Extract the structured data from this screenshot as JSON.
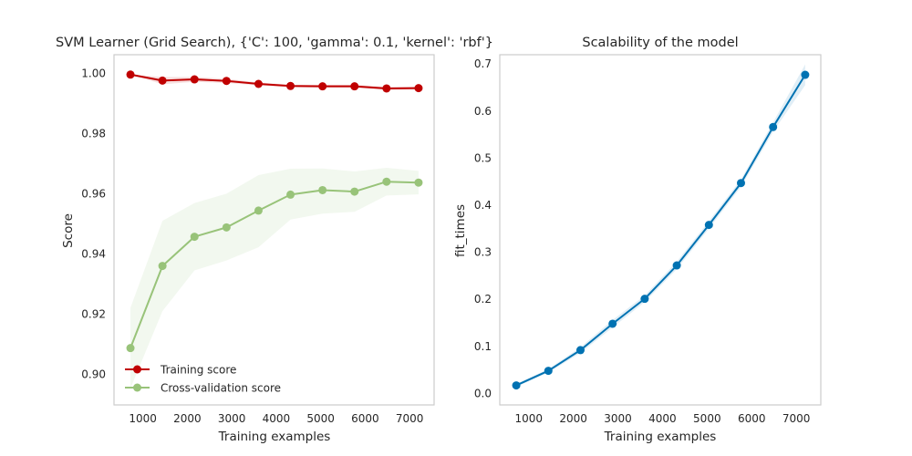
{
  "chart_data": [
    {
      "type": "line",
      "title": "SVM Learner (Grid Search), {'C': 100, 'gamma': 0.1, 'kernel': 'rbf'}",
      "xlabel": "Training examples",
      "ylabel": "Score",
      "xlim": [
        350,
        7550
      ],
      "ylim": [
        0.8898,
        1.0062
      ],
      "xticks": [
        1000,
        2000,
        3000,
        4000,
        5000,
        6000,
        7000
      ],
      "yticks": [
        0.9,
        0.92,
        0.94,
        0.96,
        0.98,
        1.0
      ],
      "ytick_labels": [
        "0.90",
        "0.92",
        "0.94",
        "0.96",
        "0.98",
        "1.00"
      ],
      "grid": false,
      "legend": "lower-left",
      "x": [
        720,
        1440,
        2160,
        2880,
        3600,
        4320,
        5040,
        5760,
        6480,
        7200
      ],
      "series": [
        {
          "name": "Training score",
          "color": "#c00000",
          "values": [
            0.9996,
            0.9976,
            0.998,
            0.9975,
            0.9965,
            0.9958,
            0.9957,
            0.9957,
            0.995,
            0.9951
          ],
          "band_lower": [
            0.9996,
            0.9964,
            0.9972,
            0.9968,
            0.996,
            0.9954,
            0.9952,
            0.9952,
            0.9945,
            0.9946
          ],
          "band_upper": [
            0.9996,
            0.9988,
            0.9988,
            0.9982,
            0.997,
            0.9962,
            0.9962,
            0.9962,
            0.9955,
            0.9956
          ]
        },
        {
          "name": "Cross-validation score",
          "color": "#98c379",
          "values": [
            0.9087,
            0.936,
            0.9457,
            0.9488,
            0.9544,
            0.9597,
            0.9612,
            0.9607,
            0.964,
            0.9637
          ],
          "band_lower": [
            0.8953,
            0.921,
            0.9345,
            0.9378,
            0.9422,
            0.9514,
            0.9534,
            0.954,
            0.9594,
            0.9598
          ],
          "band_upper": [
            0.9221,
            0.951,
            0.9569,
            0.96,
            0.9662,
            0.9683,
            0.9684,
            0.9674,
            0.9686,
            0.9676
          ]
        }
      ]
    },
    {
      "type": "line",
      "title": "Scalability of the model",
      "xlabel": "Training examples",
      "ylabel": "fit_times",
      "xlim": [
        350,
        7550
      ],
      "ylim": [
        -0.0245,
        0.7197
      ],
      "xticks": [
        1000,
        2000,
        3000,
        4000,
        5000,
        6000,
        7000
      ],
      "yticks": [
        0.0,
        0.1,
        0.2,
        0.3,
        0.4,
        0.5,
        0.6,
        0.7
      ],
      "ytick_labels": [
        "0.0",
        "0.1",
        "0.2",
        "0.3",
        "0.4",
        "0.5",
        "0.6",
        "0.7"
      ],
      "grid": false,
      "x": [
        720,
        1440,
        2160,
        2880,
        3600,
        4320,
        5040,
        5760,
        6480,
        7200
      ],
      "series": [
        {
          "color": "#0072b2",
          "values": [
            0.017,
            0.048,
            0.092,
            0.148,
            0.201,
            0.272,
            0.358,
            0.447,
            0.566,
            0.677
          ],
          "band_lower": [
            0.014,
            0.044,
            0.086,
            0.14,
            0.194,
            0.264,
            0.35,
            0.439,
            0.556,
            0.655
          ],
          "band_upper": [
            0.02,
            0.052,
            0.098,
            0.156,
            0.208,
            0.28,
            0.366,
            0.455,
            0.576,
            0.699
          ]
        }
      ]
    }
  ]
}
